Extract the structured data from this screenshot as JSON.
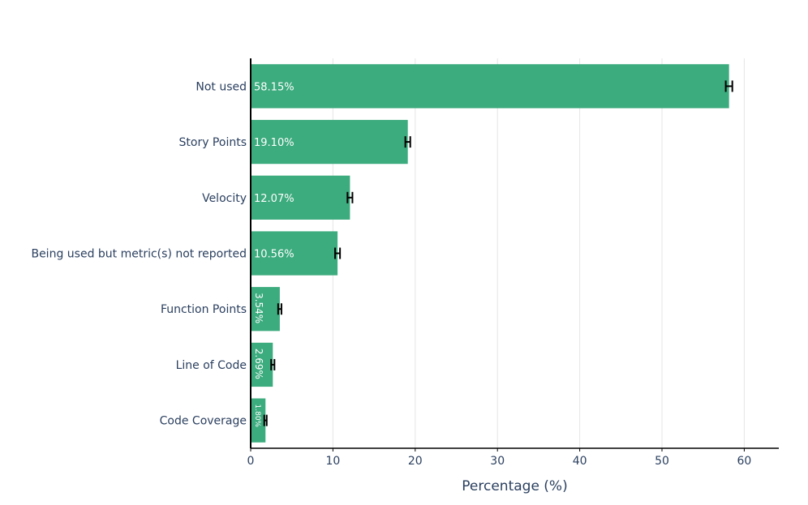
{
  "chart_data": {
    "type": "bar",
    "orientation": "horizontal",
    "categories": [
      "Not used",
      "Story Points",
      "Velocity",
      "Being used but metric(s) not reported",
      "Function Points",
      "Line of Code",
      "Code Coverage"
    ],
    "values": [
      58.15,
      19.1,
      12.07,
      10.56,
      3.54,
      2.69,
      1.8
    ],
    "data_labels": [
      "58.15%",
      "19.10%",
      "12.07%",
      "10.56%",
      "3.54%",
      "2.69%",
      "1.80%"
    ],
    "error": [
      0.4,
      0.3,
      0.3,
      0.3,
      0.2,
      0.2,
      0.15
    ],
    "xlabel": "Percentage (%)",
    "ylabel": "",
    "xlim": [
      0,
      64.2
    ],
    "xticks": [
      0,
      10,
      20,
      30,
      40,
      50,
      60
    ],
    "grid": true,
    "bar_color": "#3cab7d",
    "error_color": "#000000",
    "text_color": "#2a3f5f",
    "grid_color": "#e5e5e5"
  }
}
